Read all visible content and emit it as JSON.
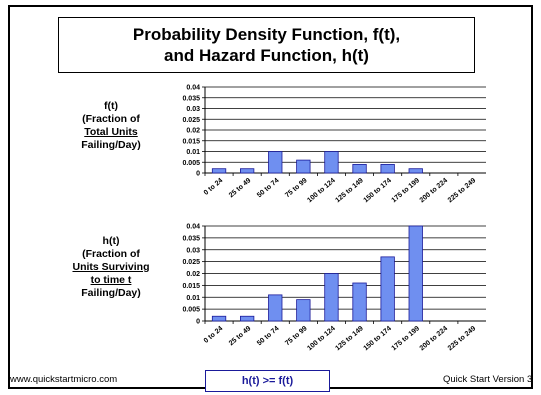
{
  "title": {
    "line1": "Probability Density Function, f(t),",
    "line2": "and Hazard Function, h(t)"
  },
  "labels": {
    "f": {
      "line1": "f(t)",
      "line2": "(Fraction of",
      "line3": "Total Units",
      "line4": "Failing/Day)"
    },
    "h": {
      "line1": "h(t)",
      "line2": "(Fraction of",
      "line3": "Units Surviving",
      "line4": "to time t",
      "line5": "Failing/Day)"
    }
  },
  "footer": {
    "left": "www.quickstartmicro.com",
    "right": "Quick Start Version 3",
    "note": "h(t) >= f(t)"
  },
  "colors": {
    "bar_fill": "#6f8ff0",
    "bar_stroke": "#1a1a9a",
    "note_border": "#1a1a9a"
  },
  "chart_data": [
    {
      "type": "bar",
      "categories": [
        "0 to 24",
        "25 to 49",
        "50 to 74",
        "75 to 99",
        "100 to 124",
        "125 to 149",
        "150 to 174",
        "175 to 199",
        "200 to 224",
        "225 to 249"
      ],
      "values": [
        0.002,
        0.002,
        0.01,
        0.006,
        0.01,
        0.004,
        0.004,
        0.002,
        0,
        0
      ],
      "yticks": [
        "0",
        "0.005",
        "0.01",
        "0.015",
        "0.02",
        "0.025",
        "0.03",
        "0.035",
        "0.04"
      ],
      "ylim": [
        0,
        0.04
      ],
      "grid": true
    },
    {
      "type": "bar",
      "categories": [
        "0 to 24",
        "25 to 49",
        "50 to 74",
        "75 to 99",
        "100 to 124",
        "125 to 149",
        "150 to 174",
        "175 to 199",
        "200 to 224",
        "225 to 249"
      ],
      "values": [
        0.002,
        0.002,
        0.011,
        0.009,
        0.02,
        0.016,
        0.027,
        0.04,
        0,
        0
      ],
      "yticks": [
        "0",
        "0.005",
        "0.01",
        "0.015",
        "0.02",
        "0.025",
        "0.03",
        "0.035",
        "0.04"
      ],
      "ylim": [
        0,
        0.04
      ],
      "grid": true
    }
  ]
}
